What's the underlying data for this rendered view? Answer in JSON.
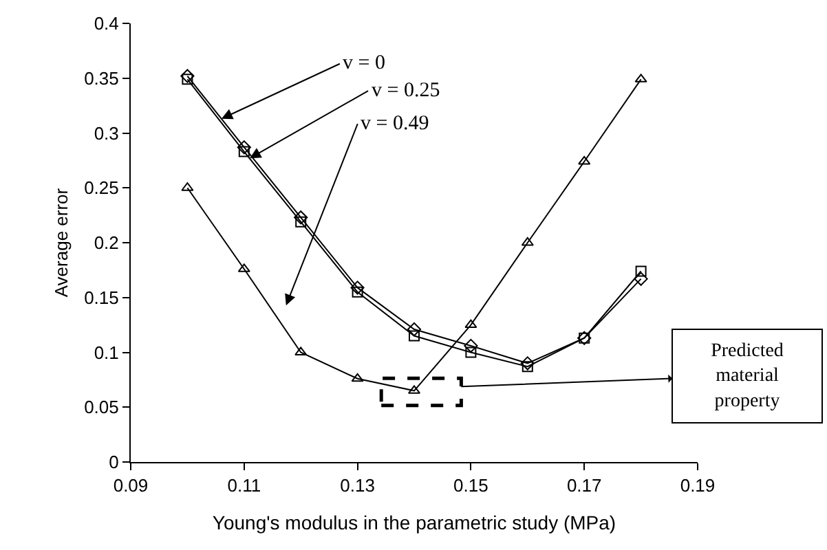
{
  "chart_data": {
    "type": "line",
    "xlabel": "Young's modulus in the parametric study (MPa)",
    "ylabel": "Average error",
    "x": [
      0.1,
      0.11,
      0.12,
      0.13,
      0.14,
      0.15,
      0.16,
      0.17,
      0.18
    ],
    "series": [
      {
        "color": "#000000",
        "marker": "diamond",
        "values": [
          0.352,
          0.287,
          0.223,
          0.159,
          0.121,
          0.106,
          0.09,
          0.113,
          0.167
        ]
      },
      {
        "color": "#000000",
        "marker": "square",
        "values": [
          0.349,
          0.283,
          0.219,
          0.155,
          0.115,
          0.1,
          0.087,
          0.113,
          0.174
        ]
      },
      {
        "color": "#000000",
        "marker": "triangle",
        "values": [
          0.25,
          0.176,
          0.1,
          0.076,
          0.065,
          0.125,
          0.2,
          0.274,
          0.349
        ]
      }
    ],
    "xlim": [
      0.09,
      0.19
    ],
    "xticks": [
      0.09,
      0.11,
      0.13,
      0.15,
      0.17,
      0.19
    ],
    "ylim": [
      0,
      0.4
    ],
    "yticks": [
      0,
      0.05,
      0.1,
      0.15,
      0.2,
      0.25,
      0.3,
      0.35,
      0.4
    ],
    "line_style": "solid",
    "annotations": [
      {
        "text": "v = 0",
        "x": 0.106,
        "y": 0.313
      },
      {
        "text": "v = 0.25",
        "x": 0.111,
        "y": 0.277
      },
      "v = 0.49",
      "Predicted material property"
    ]
  }
}
